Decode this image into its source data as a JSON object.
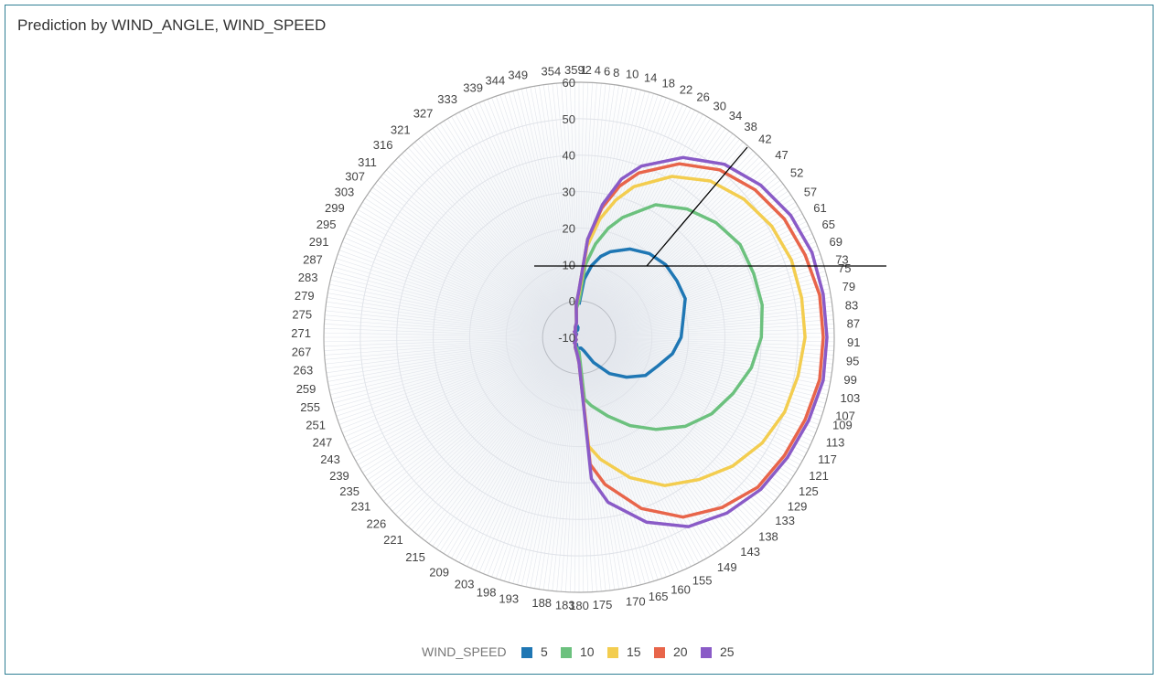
{
  "title": "Prediction by WIND_ANGLE, WIND_SPEED",
  "chart_data": {
    "type": "polar-line",
    "title": "Prediction by WIND_ANGLE, WIND_SPEED",
    "radial_axis": {
      "min": -10,
      "max": 60,
      "step": 10,
      "ticks": [
        "-10",
        "0",
        "10",
        "20",
        "30",
        "40",
        "50",
        "60"
      ]
    },
    "angular_axis": {
      "labels": [
        "1",
        "2",
        "4",
        "6",
        "8",
        "10",
        "14",
        "18",
        "22",
        "26",
        "30",
        "34",
        "38",
        "42",
        "47",
        "52",
        "57",
        "61",
        "65",
        "69",
        "73",
        "75",
        "79",
        "83",
        "87",
        "91",
        "95",
        "99",
        "103",
        "107",
        "109",
        "113",
        "117",
        "121",
        "125",
        "129",
        "133",
        "138",
        "143",
        "149",
        "155",
        "160",
        "165",
        "170",
        "175",
        "180",
        "183",
        "188",
        "193",
        "198",
        "203",
        "209",
        "215",
        "221",
        "226",
        "231",
        "235",
        "239",
        "243",
        "247",
        "251",
        "255",
        "259",
        "263",
        "267",
        "271",
        "275",
        "279",
        "283",
        "287",
        "291",
        "295",
        "299",
        "303",
        "307",
        "311",
        "316",
        "321",
        "327",
        "333",
        "339",
        "344",
        "349",
        "354",
        "359"
      ]
    },
    "legend": {
      "title": "WIND_SPEED",
      "position": "bottom"
    },
    "angles": [
      0,
      5,
      10,
      15,
      20,
      30,
      40,
      50,
      60,
      70,
      80,
      90,
      100,
      110,
      120,
      130,
      140,
      150,
      160,
      170,
      175,
      180,
      185,
      190,
      200,
      210,
      220,
      230,
      240,
      250,
      260,
      270,
      280,
      290,
      300,
      310,
      320,
      330,
      340,
      350,
      355,
      360
    ],
    "series": [
      {
        "name": "5",
        "color": "#1f77b4",
        "values": [
          -1,
          6,
          10,
          13,
          15,
          18,
          20,
          21,
          21,
          21,
          19,
          18,
          16,
          13,
          11,
          7,
          3,
          -2,
          -6,
          -7,
          -7,
          -7,
          -7,
          -7,
          -8,
          -8,
          -8,
          -9,
          -9,
          -9,
          -9,
          -9,
          -9,
          -9,
          -9,
          -9,
          -9,
          -8,
          -8,
          -8,
          -7,
          -7
        ]
      },
      {
        "name": "10",
        "color": "#6cc17e",
        "values": [
          0,
          10,
          16,
          21,
          25,
          32,
          36,
          39,
          41,
          41,
          41,
          40,
          38,
          35,
          32,
          28,
          23,
          18,
          13,
          9,
          7,
          -6,
          -6,
          -7,
          -7,
          -8,
          -8,
          -9,
          -9,
          -9,
          -9,
          -9,
          -9,
          -9,
          -9,
          -9,
          -8,
          -8,
          -7,
          -6,
          -2,
          0
        ]
      },
      {
        "name": "15",
        "color": "#f3cd4f",
        "values": [
          2,
          15,
          23,
          29,
          34,
          41,
          46,
          49,
          51,
          52,
          52,
          52,
          51,
          50,
          48,
          45,
          41,
          37,
          31,
          24,
          20,
          -3,
          -5,
          -6,
          -7,
          -8,
          -8,
          -9,
          -9,
          -9,
          -9,
          -9,
          -9,
          -9,
          -9,
          -9,
          -8,
          -8,
          -7,
          -6,
          -1,
          2
        ]
      },
      {
        "name": "20",
        "color": "#e8654a",
        "values": [
          3,
          17,
          26,
          33,
          38,
          45,
          50,
          53,
          55,
          56,
          57,
          57,
          57,
          56,
          55,
          54,
          51,
          47,
          40,
          31,
          25,
          -3,
          -5,
          -6,
          -7,
          -8,
          -8,
          -9,
          -9,
          -9,
          -9,
          -9,
          -9,
          -9,
          -9,
          -9,
          -8,
          -8,
          -7,
          -6,
          -1,
          3
        ]
      },
      {
        "name": "25",
        "color": "#8a5bc7",
        "values": [
          3,
          17,
          27,
          35,
          40,
          47,
          52,
          55,
          57,
          58,
          58,
          58,
          58,
          57,
          56,
          55,
          53,
          50,
          44,
          36,
          29,
          -3,
          -5,
          -6,
          -7,
          -8,
          -8,
          -9,
          -9,
          -9,
          -9,
          -9,
          -9,
          -9,
          -9,
          -9,
          -8,
          -8,
          -7,
          -6,
          -1,
          3
        ]
      }
    ]
  }
}
